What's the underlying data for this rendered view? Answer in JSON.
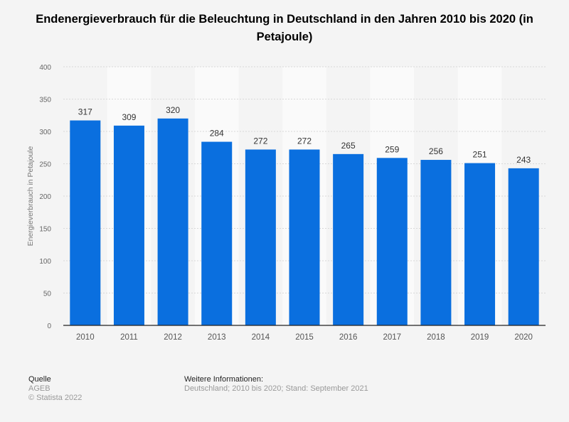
{
  "chart_data": {
    "type": "bar",
    "title": "Endenergieverbrauch für die Beleuchtung in Deutschland in den Jahren 2010 bis 2020 (in Petajoule)",
    "xlabel": "",
    "ylabel": "Energieverbrauch in Petajoule",
    "categories": [
      "2010",
      "2011",
      "2012",
      "2013",
      "2014",
      "2015",
      "2016",
      "2017",
      "2018",
      "2019",
      "2020"
    ],
    "values": [
      317,
      309,
      320,
      284,
      272,
      272,
      265,
      259,
      256,
      251,
      243
    ],
    "ylim": [
      0,
      400
    ],
    "yticks": [
      0,
      50,
      100,
      150,
      200,
      250,
      300,
      350,
      400
    ],
    "grid": true,
    "data_labels": true,
    "colors": {
      "bar": "#0a6fdf",
      "background": "#f4f4f4",
      "band": "#fafafa"
    }
  },
  "footer": {
    "source_heading": "Quelle",
    "source": "AGEB",
    "copyright": "© Statista 2022",
    "info_heading": "Weitere Informationen:",
    "info": "Deutschland; 2010 bis 2020; Stand: September 2021"
  }
}
